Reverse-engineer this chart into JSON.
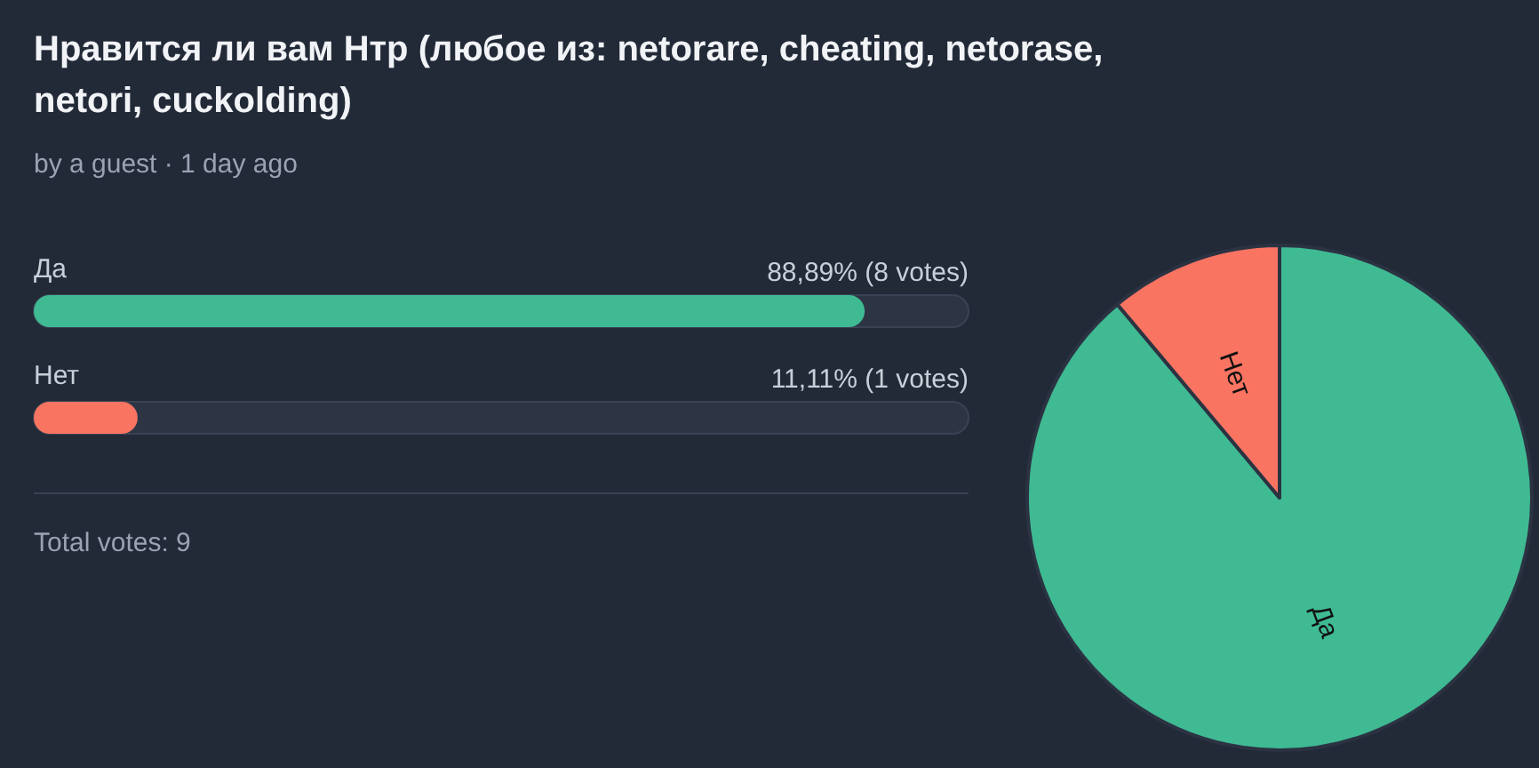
{
  "chart_data": [
    {
      "type": "bar",
      "orientation": "horizontal",
      "title": "Нравится ли вам Нтр (любое из: netorare, cheating, netorase, netori, cuckolding)",
      "subtitle": "by a guest · 1 day ago",
      "categories": [
        "Да",
        "Нет"
      ],
      "colors": [
        "#3fba93",
        "#fa7462"
      ],
      "values": [
        88.89,
        11.11
      ],
      "value_labels": [
        "88,89% (8 votes)",
        "11,11% (1 votes)"
      ],
      "xlim": [
        0,
        100
      ],
      "tick_labels": false,
      "annotations": [
        "Total votes: 9"
      ]
    },
    {
      "type": "pie",
      "categories": [
        "Да",
        "Нет"
      ],
      "values": [
        88.89,
        11.11
      ],
      "colors": [
        "#3fba93",
        "#fa7462"
      ]
    }
  ]
}
